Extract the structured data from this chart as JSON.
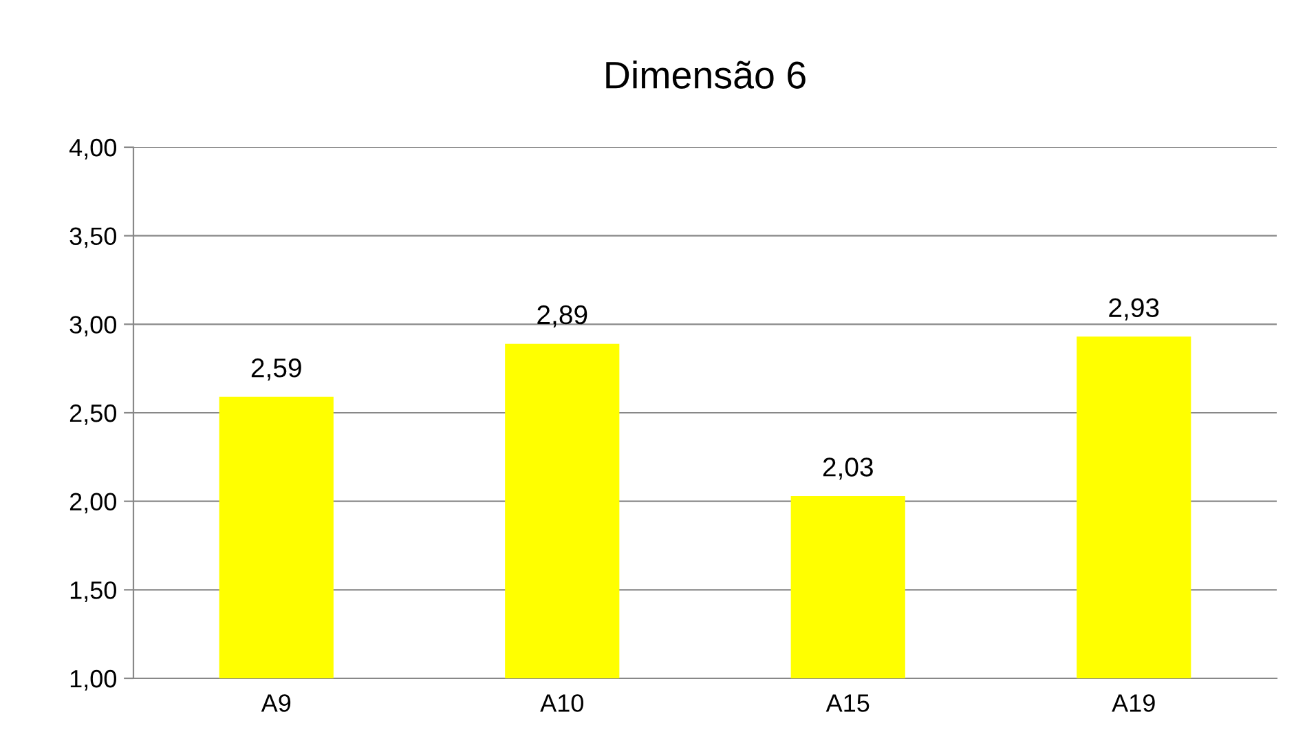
{
  "chart_data": {
    "type": "bar",
    "title": "Dimensão 6",
    "categories": [
      "A9",
      "A10",
      "A15",
      "A19"
    ],
    "values": [
      2.59,
      2.89,
      2.03,
      2.93
    ],
    "value_labels": [
      "2,59",
      "2,89",
      "2,03",
      "2,93"
    ],
    "color": "#ffff00",
    "ylim": [
      1,
      4
    ],
    "yticks": [
      {
        "value": 1,
        "label": "1,00"
      },
      {
        "value": 1.5,
        "label": "1,50"
      },
      {
        "value": 2,
        "label": "2,00"
      },
      {
        "value": 2.5,
        "label": "2,50"
      },
      {
        "value": 3,
        "label": "3,00"
      },
      {
        "value": 3.5,
        "label": "3,50"
      },
      {
        "value": 4,
        "label": "4,00"
      }
    ],
    "grid": "y",
    "legend": false
  }
}
